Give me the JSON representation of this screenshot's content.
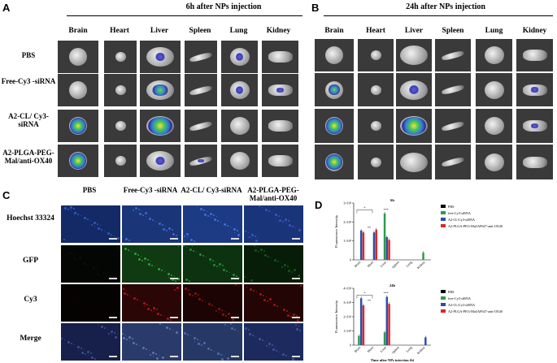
{
  "panels": {
    "A": {
      "letter": "A",
      "title": "6h after NPs injection",
      "organs": [
        "Brain",
        "Heart",
        "Liver",
        "Spleen",
        "Lung",
        "Kidney"
      ],
      "groups": [
        "PBS",
        "Free-Cy3 -siRNA",
        "A2-CL/ Cy3-siRNA",
        "A2-PLGA-PEG- Mal/anti-OX40"
      ]
    },
    "B": {
      "letter": "B",
      "title": "24h after NPs injection",
      "organs": [
        "Brain",
        "Heart",
        "Liver",
        "Spleen",
        "Lung",
        "Kidney"
      ]
    },
    "C": {
      "letter": "C",
      "columns": [
        "PBS",
        "Free-Cy3 -siRNA",
        "A2-CL/ Cy3-siRNA",
        "A2-PLGA-PEG- Mal/anti-OX40"
      ],
      "rows": [
        "Hoechst 33324",
        "GFP",
        "Cy3",
        "Merge"
      ]
    },
    "D": {
      "letter": "D"
    }
  },
  "chart_data": [
    {
      "type": "bar",
      "title": "6h",
      "categories": [
        "Brain",
        "Heart",
        "Liver",
        "Spleen",
        "Lung",
        "Kidney"
      ],
      "ylabel": "Fluorescence Intensity",
      "xlabel": "",
      "ylim": [
        0,
        30000
      ],
      "yticks": [
        "0",
        "1×10⁴",
        "2×10⁴",
        "3×10⁴"
      ],
      "series": [
        {
          "name": "PBS",
          "color": "#000000",
          "values": [
            0,
            0,
            0,
            0,
            0,
            0
          ]
        },
        {
          "name": "free-Cy3-siRNA",
          "color": "#2e9a4a",
          "values": [
            0,
            0,
            24500,
            0,
            0,
            3800
          ]
        },
        {
          "name": "A2-CL/Cy3-siRNA",
          "color": "#2b4fa8",
          "values": [
            15500,
            14500,
            12000,
            0,
            0,
            0
          ]
        },
        {
          "name": "A2-PLGA-PEG-Mal/AF647-anti-OX40",
          "color": "#e0252b",
          "values": [
            14500,
            16000,
            10500,
            0,
            0,
            0
          ]
        }
      ],
      "annotations": [
        "*",
        "**",
        "***"
      ],
      "legend_position": "right"
    },
    {
      "type": "bar",
      "title": "24h",
      "categories": [
        "Brain",
        "Heart",
        "Liver",
        "Spleen",
        "Lung",
        "Kidney"
      ],
      "ylabel": "Fluorescence Intensity",
      "xlabel": "Time after NPs injection (h)",
      "ylim": [
        0,
        40000
      ],
      "yticks": [
        "0",
        "1×10⁴",
        "2×10⁴",
        "3×10⁴",
        "4×10⁴"
      ],
      "series": [
        {
          "name": "PBS",
          "color": "#000000",
          "values": [
            0,
            0,
            0,
            0,
            0,
            0
          ]
        },
        {
          "name": "free-Cy3-siRNA",
          "color": "#2e9a4a",
          "values": [
            6500,
            0,
            9000,
            0,
            0,
            0
          ]
        },
        {
          "name": "A2-CL/Cy3-siRNA",
          "color": "#2b4fa8",
          "values": [
            33000,
            0,
            34000,
            0,
            0,
            5500
          ]
        },
        {
          "name": "A2-PLGA-PEG-Mal/AF647-anti-OX40",
          "color": "#e0252b",
          "values": [
            28000,
            0,
            29000,
            0,
            0,
            0
          ]
        }
      ],
      "annotations": [
        "*",
        "**",
        "***"
      ],
      "legend_position": "right"
    }
  ]
}
